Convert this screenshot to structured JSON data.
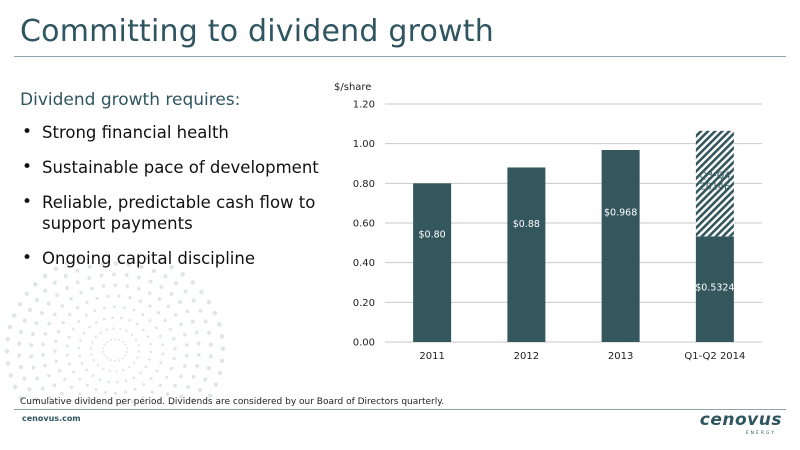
{
  "slide": {
    "title": "Committing to dividend growth",
    "subhead": "Dividend growth requires:",
    "bullets": [
      "Strong financial health",
      "Sustainable pace of development",
      "Reliable, predictable cash flow to support payments",
      "Ongoing capital discipline"
    ],
    "footnote": "Cumulative dividend per period. Dividends are considered by our Board of Directors quarterly.",
    "site": "cenovus.com",
    "logo_word": "cenovus",
    "logo_sub": "ENERGY"
  },
  "colors": {
    "bar": "#34575e",
    "accent": "#2f5560",
    "grid": "#c9c9c9"
  },
  "chart_data": {
    "type": "bar",
    "ylabel": "$/share",
    "ylim": [
      0,
      1.2
    ],
    "yticks": [
      "0.00",
      "0.20",
      "0.40",
      "0.60",
      "0.80",
      "1.00",
      "1.20"
    ],
    "categories": [
      "2011",
      "2012",
      "2013",
      "Q1-Q2 2014"
    ],
    "series": [
      {
        "values": [
          0.8,
          0.88,
          0.968,
          0.5324
        ],
        "labels": [
          "$0.80",
          "$0.88",
          "$0.968",
          "$0.5324"
        ],
        "pattern": "solid"
      },
      {
        "values": [
          0,
          0,
          0,
          0.5324
        ],
        "labels": [
          "",
          "",
          "",
          "Q3-Q4 2014E"
        ],
        "pattern": "hatched"
      }
    ],
    "grid": true,
    "legend": "none"
  }
}
